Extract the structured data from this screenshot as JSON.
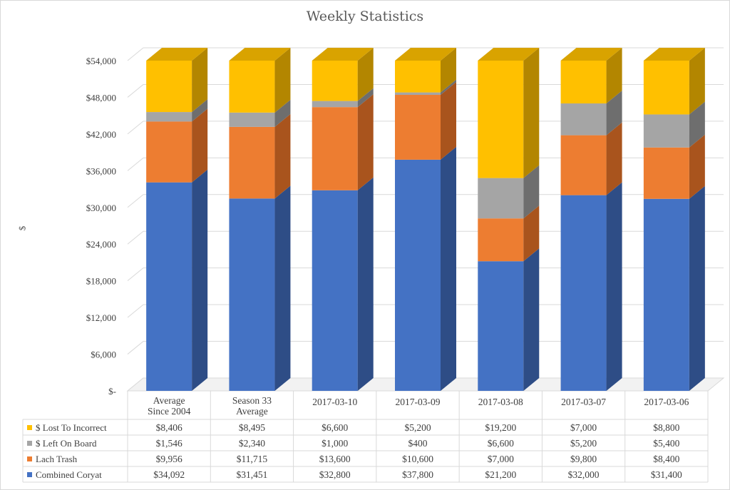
{
  "chart_data": {
    "type": "bar",
    "stacked": true,
    "three_d": true,
    "title": "Weekly Statistics",
    "ylabel": "$",
    "ylim": [
      0,
      54000
    ],
    "yticks": [
      "$-",
      "$6,000",
      "$12,000",
      "$18,000",
      "$24,000",
      "$30,000",
      "$36,000",
      "$42,000",
      "$48,000",
      "$54,000"
    ],
    "grid": true,
    "legend_placement": "data table rows",
    "categories": [
      [
        "Average",
        "Since 2004"
      ],
      [
        "Season 33",
        "Average"
      ],
      [
        "2017-03-10"
      ],
      [
        "2017-03-09"
      ],
      [
        "2017-03-08"
      ],
      [
        "2017-03-07"
      ],
      [
        "2017-03-06"
      ]
    ],
    "series": [
      {
        "name": "Combined Coryat",
        "color": "#4472c4",
        "side": "#2e4d86",
        "top": "#3a63ae",
        "values": [
          34092,
          31451,
          32800,
          37800,
          21200,
          32000,
          31400
        ],
        "labels": [
          "$34,092",
          "$31,451",
          "$32,800",
          "$37,800",
          "$21,200",
          "$32,000",
          "$31,400"
        ]
      },
      {
        "name": "Lach Trash",
        "color": "#ed7d31",
        "side": "#a9541d",
        "top": "#d96c22",
        "values": [
          9956,
          11715,
          13600,
          10600,
          7000,
          9800,
          8400
        ],
        "labels": [
          "$9,956",
          "$11,715",
          "$13,600",
          "$10,600",
          "$7,000",
          "$9,800",
          "$8,400"
        ]
      },
      {
        "name": "$ Left On Board",
        "color": "#a5a5a5",
        "side": "#6e6e6e",
        "top": "#939393",
        "values": [
          1546,
          2340,
          1000,
          400,
          6600,
          5200,
          5400
        ],
        "labels": [
          "$1,546",
          "$2,340",
          "$1,000",
          "$400",
          "$6,600",
          "$5,200",
          "$5,400"
        ]
      },
      {
        "name": "$ Lost To Incorrect",
        "color": "#ffc000",
        "side": "#b38600",
        "top": "#d9a300",
        "values": [
          8406,
          8495,
          6600,
          5200,
          19200,
          7000,
          8800
        ],
        "labels": [
          "$8,406",
          "$8,495",
          "$6,600",
          "$5,200",
          "$19,200",
          "$7,000",
          "$8,800"
        ]
      }
    ]
  }
}
